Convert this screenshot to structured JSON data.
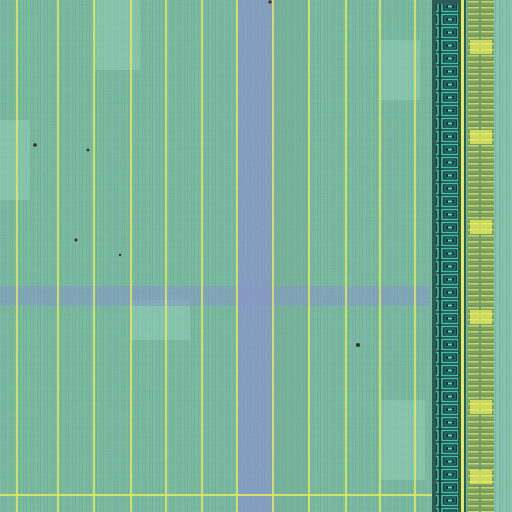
{
  "image": {
    "subject": "die-micrograph",
    "palette": {
      "substrate": "#6cc08a",
      "substrate_light": "#86d49c",
      "trace_blue": "#7f8fc4",
      "power_rail_yellow": "#e4ea5e",
      "pad_teal": "#28a89c",
      "pad_dark": "#1a3a36",
      "pad_stripe_yellow": "#e8ec50"
    }
  }
}
